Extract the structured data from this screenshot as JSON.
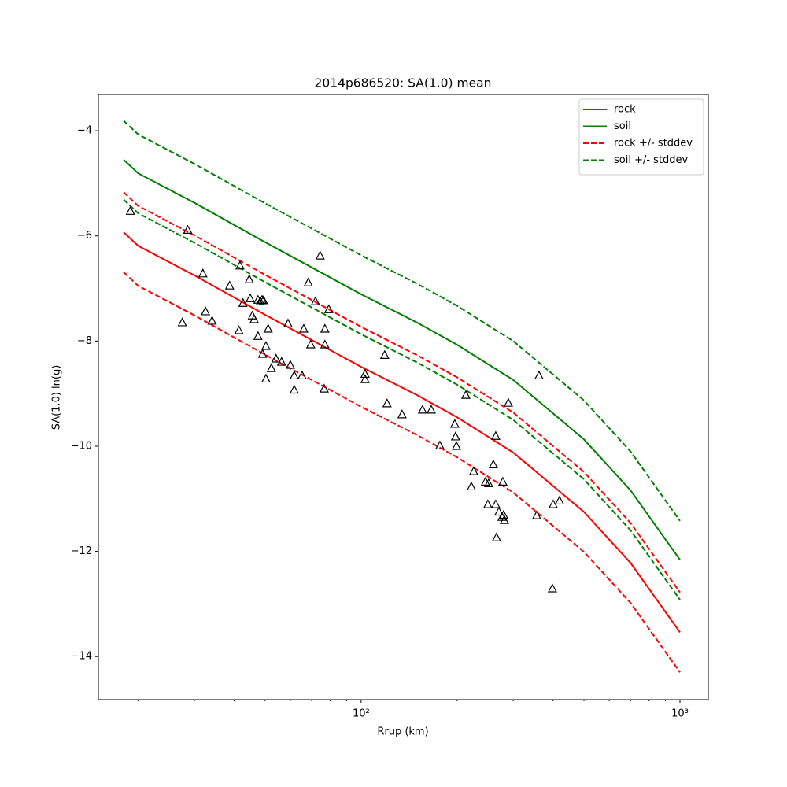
{
  "chart_data": {
    "type": "line",
    "title": "2014p686520: SA(1.0) mean",
    "x_label": "Rrup (km)",
    "y_label": "SA(1.0) ln(g)",
    "x_scale": "log",
    "xlim": [
      15,
      1227
    ],
    "ylim": [
      -14.82,
      -3.31
    ],
    "xticks": [
      {
        "value": 100,
        "label": "10²"
      },
      {
        "value": 1000,
        "label": "10³"
      }
    ],
    "xminorticks": [
      20,
      30,
      40,
      50,
      60,
      70,
      80,
      90,
      200,
      300,
      400,
      500,
      600,
      700,
      800,
      900
    ],
    "yticks": [
      {
        "value": -14,
        "label": "−14"
      },
      {
        "value": -12,
        "label": "−12"
      },
      {
        "value": -10,
        "label": "−10"
      },
      {
        "value": -8,
        "label": "−8"
      },
      {
        "value": -6,
        "label": "−6"
      },
      {
        "value": -4,
        "label": "−4"
      }
    ],
    "legend": "upper right",
    "x": [
      18,
      20,
      30,
      50,
      70,
      100,
      150,
      200,
      300,
      500,
      700,
      1000
    ],
    "series": [
      {
        "name": "rock",
        "color": "#ff0000",
        "dashed": false,
        "values": [
          -5.93,
          -6.19,
          -6.75,
          -7.5,
          -7.98,
          -8.49,
          -9.03,
          -9.45,
          -10.12,
          -11.25,
          -12.22,
          -13.54
        ]
      },
      {
        "name": "soil",
        "color": "#008000",
        "dashed": false,
        "values": [
          -4.55,
          -4.81,
          -5.37,
          -6.12,
          -6.6,
          -7.11,
          -7.65,
          -8.07,
          -8.74,
          -9.87,
          -10.84,
          -12.16
        ]
      },
      {
        "name": "rock +/- stddev",
        "color": "#ff0000",
        "dashed": true,
        "values": [
          -5.17,
          -5.43,
          -5.99,
          -6.74,
          -7.22,
          -7.73,
          -8.27,
          -8.69,
          -9.36,
          -10.49,
          -11.46,
          -12.78
        ],
        "values_minus": [
          -6.69,
          -6.95,
          -7.51,
          -8.26,
          -8.74,
          -9.25,
          -9.79,
          -10.21,
          -10.88,
          -12.01,
          -12.98,
          -14.3
        ]
      },
      {
        "name": "soil +/- stddev",
        "color": "#008000",
        "dashed": true,
        "values": [
          -3.81,
          -4.07,
          -4.63,
          -5.38,
          -5.86,
          -6.37,
          -6.91,
          -7.33,
          -8.0,
          -9.13,
          -10.1,
          -11.42
        ],
        "values_minus": [
          -5.31,
          -5.57,
          -6.13,
          -6.88,
          -7.36,
          -7.87,
          -8.41,
          -8.83,
          -9.5,
          -10.63,
          -11.6,
          -12.92
        ]
      }
    ],
    "points": {
      "color": "#000000",
      "x": [
        18.9,
        28.6,
        27.5,
        31.9,
        32.5,
        34.1,
        38.7,
        41.4,
        41.7,
        42.6,
        44.6,
        44.9,
        45.6,
        46.2,
        47.5,
        47.5,
        48.3,
        48.9,
        49.1,
        49.4,
        50.3,
        50.3,
        51.1,
        52.3,
        54.1,
        56.3,
        59.0,
        60.0,
        61.7,
        61.7,
        65.3,
        66.1,
        68.3,
        69.5,
        71.9,
        74.4,
        76.6,
        77.0,
        77.0,
        79.2,
        102.9,
        102.9,
        118.6,
        120.6,
        134.4,
        155.8,
        165.9,
        176.6,
        196.7,
        197.8,
        199.0,
        213.1,
        221.7,
        225.5,
        245.5,
        249.7,
        251.2,
        259.9,
        264.4,
        264.4,
        265.9,
        270.5,
        276.7,
        278.3,
        279.9,
        281.5,
        289.6,
        355.3,
        361.4,
        400.4,
        398.1,
        419.0
      ],
      "y": [
        -5.53,
        -5.89,
        -7.65,
        -6.72,
        -7.44,
        -7.62,
        -6.95,
        -7.8,
        -6.57,
        -7.28,
        -6.83,
        -7.19,
        -7.52,
        -7.59,
        -7.22,
        -7.91,
        -7.25,
        -7.22,
        -8.25,
        -7.23,
        -8.1,
        -8.72,
        -7.77,
        -8.52,
        -8.34,
        -8.4,
        -7.67,
        -8.46,
        -8.66,
        -8.93,
        -8.66,
        -7.77,
        -6.89,
        -8.07,
        -7.25,
        -6.38,
        -8.91,
        -7.77,
        -8.07,
        -7.4,
        -8.63,
        -8.73,
        -8.27,
        -9.19,
        -9.4,
        -9.31,
        -9.31,
        -9.99,
        -9.58,
        -9.82,
        -10.0,
        -9.03,
        -10.77,
        -10.48,
        -10.68,
        -11.11,
        -10.71,
        -10.35,
        -9.81,
        -11.11,
        -11.74,
        -11.25,
        -11.35,
        -10.68,
        -11.31,
        -11.41,
        -9.18,
        -11.32,
        -8.66,
        -11.11,
        -12.71,
        -11.04
      ]
    }
  }
}
